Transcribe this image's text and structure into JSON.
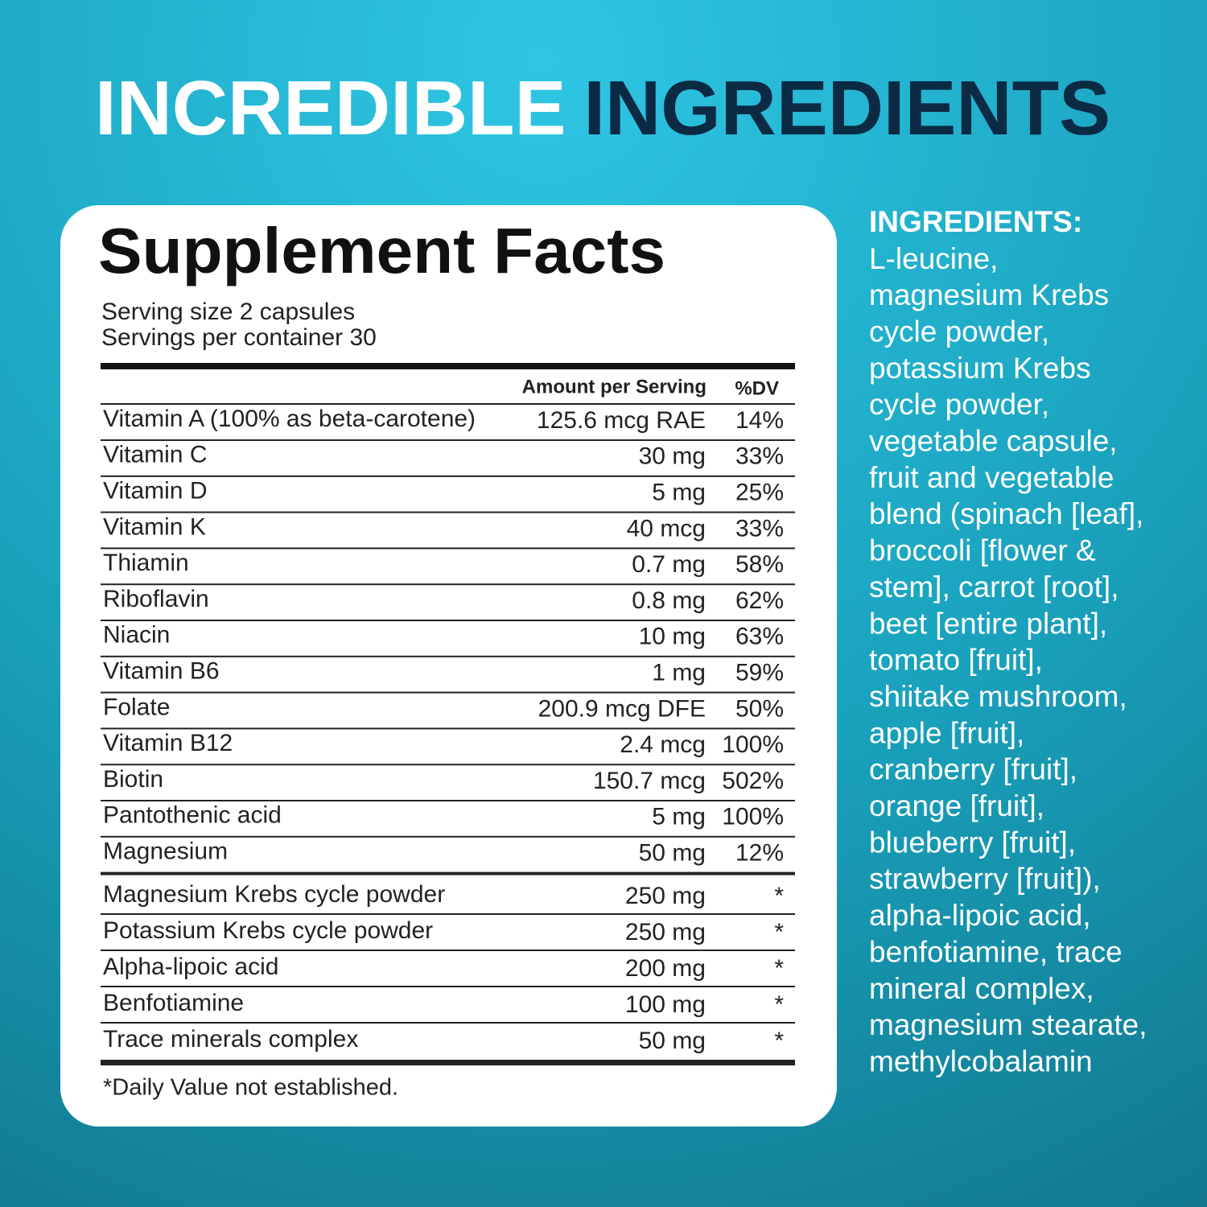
{
  "title": {
    "part1": "INCREDIBLE",
    "part2": "INGREDIENTS"
  },
  "facts": {
    "title": "Supplement Facts",
    "serving_size": "Serving size 2 capsules",
    "servings": "Servings per container 30",
    "header": {
      "amount": "Amount per Serving",
      "dv": "%DV"
    },
    "rows": [
      [
        "Vitamin A (100% as beta-carotene)",
        "125.6 mcg RAE",
        "14%"
      ],
      [
        "Vitamin C",
        "30 mg",
        "33%"
      ],
      [
        "Vitamin D",
        "5 mg",
        "25%"
      ],
      [
        "Vitamin K",
        "40 mcg",
        "33%"
      ],
      [
        "Thiamin",
        "0.7 mg",
        "58%"
      ],
      [
        "Riboflavin",
        "0.8 mg",
        "62%"
      ],
      [
        "Niacin",
        "10 mg",
        "63%"
      ],
      [
        "Vitamin B6",
        "1 mg",
        "59%"
      ],
      [
        "Folate",
        "200.9 mcg DFE",
        "50%"
      ],
      [
        "Vitamin B12",
        "2.4 mcg",
        "100%"
      ],
      [
        "Biotin",
        "150.7 mcg",
        "502%"
      ],
      [
        "Pantothenic acid",
        "5 mg",
        "100%"
      ],
      [
        "Magnesium",
        "50 mg",
        "12%"
      ]
    ],
    "other_rows": [
      [
        "Magnesium Krebs cycle powder",
        "250 mg",
        "*"
      ],
      [
        "Potassium Krebs cycle powder",
        "250 mg",
        "*"
      ],
      [
        "Alpha-lipoic acid",
        "200 mg",
        "*"
      ],
      [
        "Benfotiamine",
        "100 mg",
        "*"
      ],
      [
        "Trace minerals complex",
        "50 mg",
        "*"
      ]
    ],
    "footnote": "*Daily Value not established."
  },
  "ingredients": {
    "heading": "INGREDIENTS:",
    "lines": [
      "L-leucine,",
      "magnesium Krebs",
      "cycle powder,",
      "potassium Krebs",
      "cycle powder,",
      "vegetable capsule,",
      "fruit and vegetable",
      "blend (spinach [leaf],",
      "broccoli [flower &",
      "stem], carrot [root],",
      "beet [entire plant],",
      "tomato [fruit],",
      "shiitake mushroom,",
      "apple [fruit],",
      "cranberry [fruit],",
      "orange [fruit],",
      "blueberry [fruit],",
      "strawberry [fruit]),",
      "alpha-lipoic acid,",
      "benfotiamine, trace",
      "mineral complex,",
      "magnesium stearate,",
      "methylcobalamin"
    ]
  }
}
